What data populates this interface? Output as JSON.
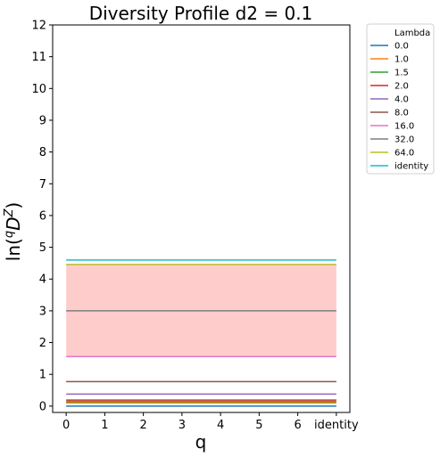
{
  "chart_data": {
    "type": "line",
    "title": "Diversity Profile d2 = 0.1",
    "xlabel": "q",
    "ylabel": "ln(qD^Z)",
    "x": [
      "0",
      "1",
      "2",
      "3",
      "4",
      "5",
      "6",
      "identity"
    ],
    "x_tick_labels": [
      "0",
      "1",
      "2",
      "3",
      "4",
      "5",
      "6",
      "identity"
    ],
    "ylim": [
      -0.2,
      12
    ],
    "y_ticks": [
      0,
      1,
      2,
      3,
      4,
      5,
      6,
      7,
      8,
      9,
      10,
      11,
      12
    ],
    "grid": false,
    "legend": {
      "title": "Lambda",
      "placement": "outside right"
    },
    "shaded_band": {
      "from": 1.56,
      "to": 4.46,
      "color": "#ffcccc"
    },
    "series": [
      {
        "name": "0.0",
        "color": "#1f77b4",
        "values": [
          0.0,
          0.0,
          0.0,
          0.0,
          0.0,
          0.0,
          0.0,
          0.0
        ]
      },
      {
        "name": "1.0",
        "color": "#ff7f0e",
        "values": [
          0.1,
          0.1,
          0.1,
          0.1,
          0.1,
          0.1,
          0.1,
          0.1
        ]
      },
      {
        "name": "1.5",
        "color": "#2ca02c",
        "values": [
          0.14,
          0.14,
          0.14,
          0.14,
          0.14,
          0.14,
          0.14,
          0.14
        ]
      },
      {
        "name": "2.0",
        "color": "#d62728",
        "values": [
          0.19,
          0.19,
          0.19,
          0.19,
          0.19,
          0.19,
          0.19,
          0.19
        ]
      },
      {
        "name": "4.0",
        "color": "#9467bd",
        "values": [
          0.38,
          0.38,
          0.38,
          0.38,
          0.38,
          0.38,
          0.38,
          0.38
        ]
      },
      {
        "name": "8.0",
        "color": "#8c564b",
        "values": [
          0.77,
          0.77,
          0.77,
          0.77,
          0.77,
          0.77,
          0.77,
          0.77
        ]
      },
      {
        "name": "16.0",
        "color": "#e377c2",
        "values": [
          1.56,
          1.56,
          1.56,
          1.56,
          1.56,
          1.56,
          1.56,
          1.56
        ]
      },
      {
        "name": "32.0",
        "color": "#7f7f7f",
        "values": [
          3.0,
          3.0,
          3.0,
          3.0,
          3.0,
          3.0,
          3.0,
          3.0
        ]
      },
      {
        "name": "64.0",
        "color": "#bcbd22",
        "values": [
          4.46,
          4.46,
          4.46,
          4.46,
          4.46,
          4.46,
          4.46,
          4.46
        ]
      },
      {
        "name": "identity",
        "color": "#17becf",
        "values": [
          4.6,
          4.6,
          4.6,
          4.6,
          4.6,
          4.6,
          4.6,
          4.6
        ]
      }
    ]
  }
}
